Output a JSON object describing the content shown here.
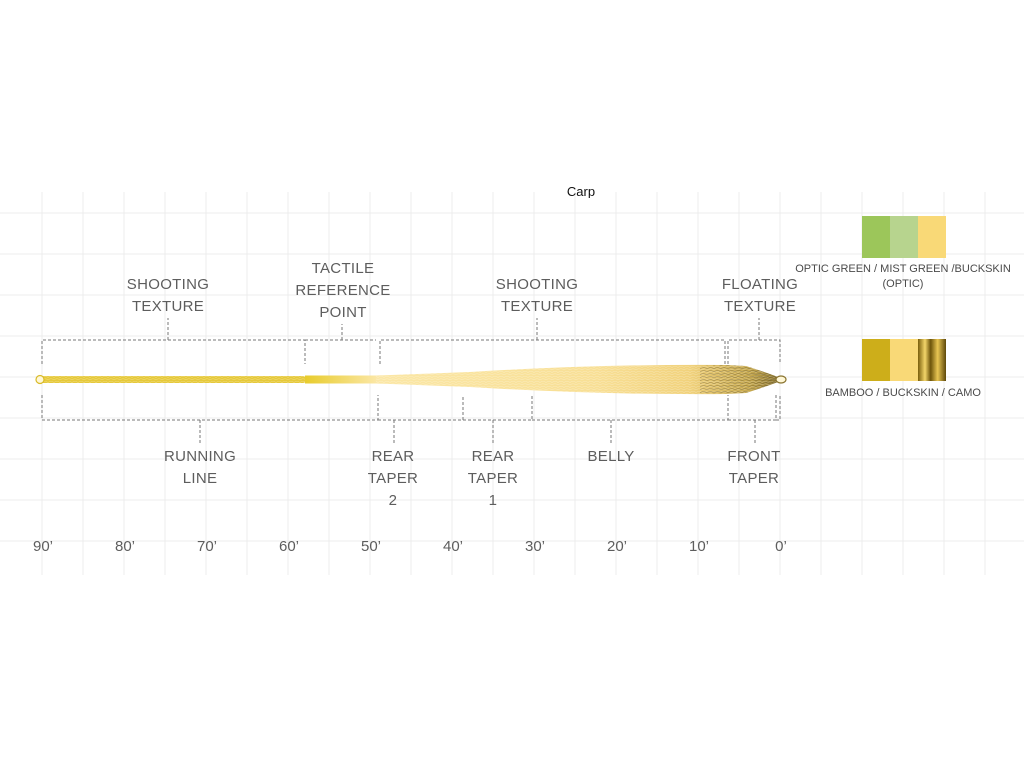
{
  "title": "Carp",
  "top_labels": [
    {
      "id": "shooting-texture-left",
      "lines": [
        "SHOOTING",
        "TEXTURE"
      ]
    },
    {
      "id": "tactile-reference-point",
      "lines": [
        "TACTILE",
        "REFERENCE",
        "POINT"
      ]
    },
    {
      "id": "shooting-texture-right",
      "lines": [
        "SHOOTING",
        "TEXTURE"
      ]
    },
    {
      "id": "floating-texture",
      "lines": [
        "FLOATING",
        "TEXTURE"
      ]
    }
  ],
  "bottom_labels": [
    {
      "id": "running-line",
      "lines": [
        "RUNNING",
        "LINE"
      ]
    },
    {
      "id": "rear-taper-2",
      "lines": [
        "REAR",
        "TAPER",
        "2"
      ]
    },
    {
      "id": "rear-taper-1",
      "lines": [
        "REAR",
        "TAPER",
        "1"
      ]
    },
    {
      "id": "belly",
      "lines": [
        "BELLY"
      ]
    },
    {
      "id": "front-taper",
      "lines": [
        "FRONT",
        "TAPER"
      ]
    }
  ],
  "scale_ticks": [
    "90’",
    "80’",
    "70’",
    "60’",
    "50’",
    "40’",
    "30’",
    "20’",
    "10’",
    "0’"
  ],
  "color_options": [
    {
      "caption_lines": [
        "OPTIC GREEN / MIST GREEN /BUCKSKIN",
        "(OPTIC)"
      ],
      "swatches": [
        {
          "name": "optic-green",
          "color": "#9cc65a"
        },
        {
          "name": "mist-green",
          "color": "#b7d48e"
        },
        {
          "name": "buckskin",
          "color": "#f9d977"
        }
      ]
    },
    {
      "caption_lines": [
        "BAMBOO / BUCKSKIN / CAMO"
      ],
      "swatches": [
        {
          "name": "bamboo",
          "color": "#cdae1a"
        },
        {
          "name": "buckskin",
          "color": "#f9d977"
        },
        {
          "name": "camo",
          "color": "#a88a22"
        }
      ]
    }
  ]
}
